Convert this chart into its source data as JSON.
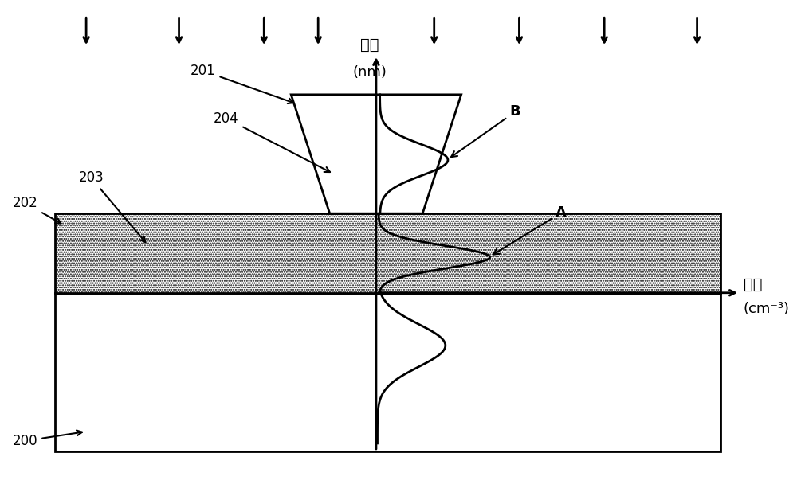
{
  "bg_color": "#ffffff",
  "fig_width": 10.0,
  "fig_height": 6.23,
  "dpi": 100,
  "labels": {
    "depth_line1": "深度",
    "depth_line2": "(nm)",
    "conc_line1": "浓度",
    "conc_line2": "(cm⁻³)",
    "label_200": "200",
    "label_201": "201",
    "label_202": "202",
    "label_203": "203",
    "label_204": "204",
    "label_A": "A",
    "label_B": "B"
  },
  "colors": {
    "black": "#000000",
    "white": "#ffffff"
  }
}
